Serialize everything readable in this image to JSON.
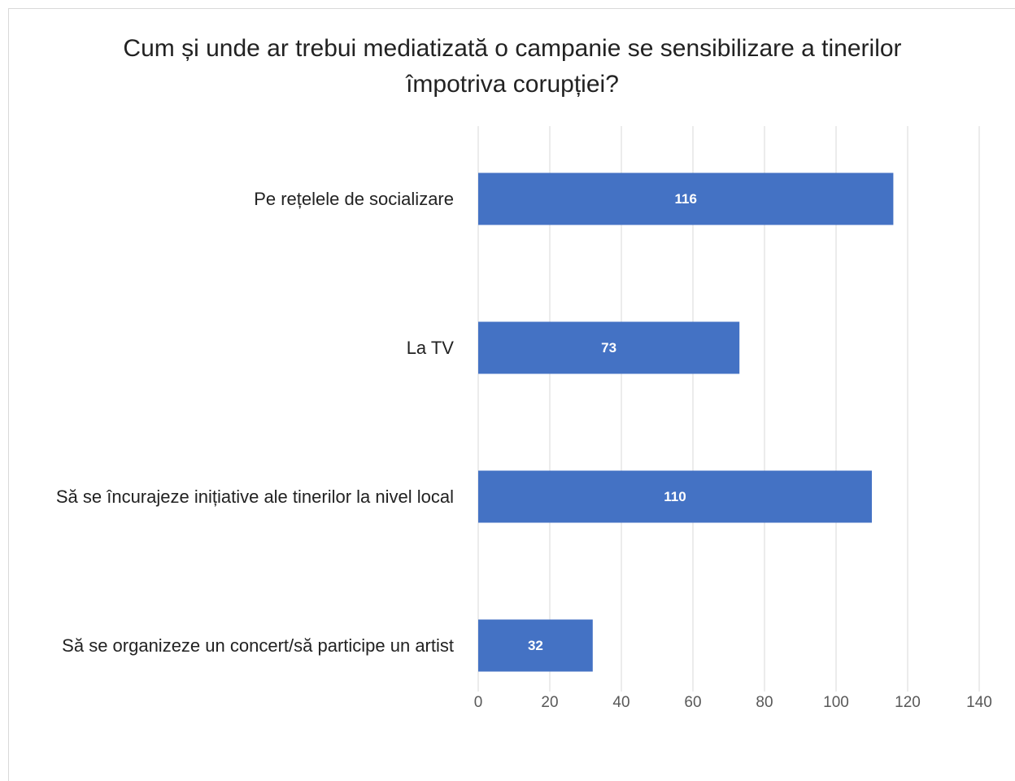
{
  "chart_data": {
    "type": "bar",
    "orientation": "horizontal",
    "title": "Cum și unde ar trebui mediatizată o campanie se sensibilizare a tinerilor împotriva corupției?",
    "categories": [
      "Pe rețelele de socializare",
      "La TV",
      "Să se încurajeze inițiative ale tinerilor la nivel local",
      "Să se organizeze un concert/să participe un artist"
    ],
    "values": [
      116,
      73,
      110,
      32
    ],
    "color": "#4472c4",
    "xlim": [
      0,
      140
    ],
    "xticks": [
      0,
      20,
      40,
      60,
      80,
      100,
      120,
      140
    ],
    "grid": true
  }
}
